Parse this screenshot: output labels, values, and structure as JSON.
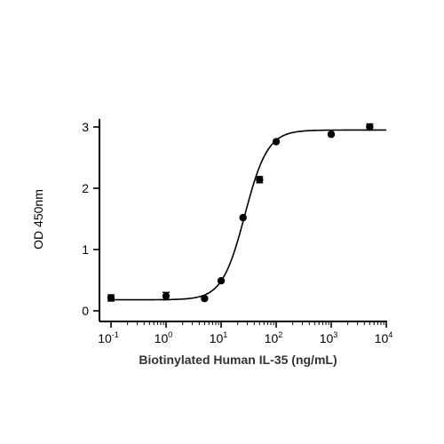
{
  "chart_data": {
    "type": "scatter",
    "title": "",
    "xlabel": "Biotinylated Human IL-35 (ng/mL)",
    "ylabel": "OD 450nm",
    "xscale": "log",
    "xlim": [
      0.1,
      10000
    ],
    "ylim": [
      0,
      3
    ],
    "grid": false,
    "legend": "none",
    "x_ticks": [
      {
        "value": 0.1,
        "base": "10",
        "exp": "-1"
      },
      {
        "value": 1,
        "base": "10",
        "exp": "0"
      },
      {
        "value": 10,
        "base": "10",
        "exp": "1"
      },
      {
        "value": 100,
        "base": "10",
        "exp": "2"
      },
      {
        "value": 1000,
        "base": "10",
        "exp": "3"
      },
      {
        "value": 10000,
        "base": "10",
        "exp": "4"
      }
    ],
    "y_ticks": [
      0,
      1,
      2,
      3
    ],
    "series": [
      {
        "points": [
          {
            "x": 0.1,
            "y": 0.21,
            "err": 0.05
          },
          {
            "x": 1,
            "y": 0.24,
            "err": 0.06
          },
          {
            "x": 5,
            "y": 0.2,
            "err": 0.0
          },
          {
            "x": 10,
            "y": 0.49,
            "err": 0.0
          },
          {
            "x": 25,
            "y": 1.52,
            "err": 0.0
          },
          {
            "x": 50,
            "y": 2.14,
            "err": 0.05
          },
          {
            "x": 100,
            "y": 2.76,
            "err": 0.0
          },
          {
            "x": 1000,
            "y": 2.88,
            "err": 0.0
          },
          {
            "x": 5000,
            "y": 3.0,
            "err": 0.05
          }
        ],
        "fit": {
          "model": "4PL",
          "bottom": 0.18,
          "top": 2.95,
          "ec50": 27,
          "hill": 2.1
        }
      }
    ],
    "colors": {
      "axis": "#000000",
      "marker": "#000000",
      "curve": "#000000",
      "xlabel": "#333333"
    }
  }
}
